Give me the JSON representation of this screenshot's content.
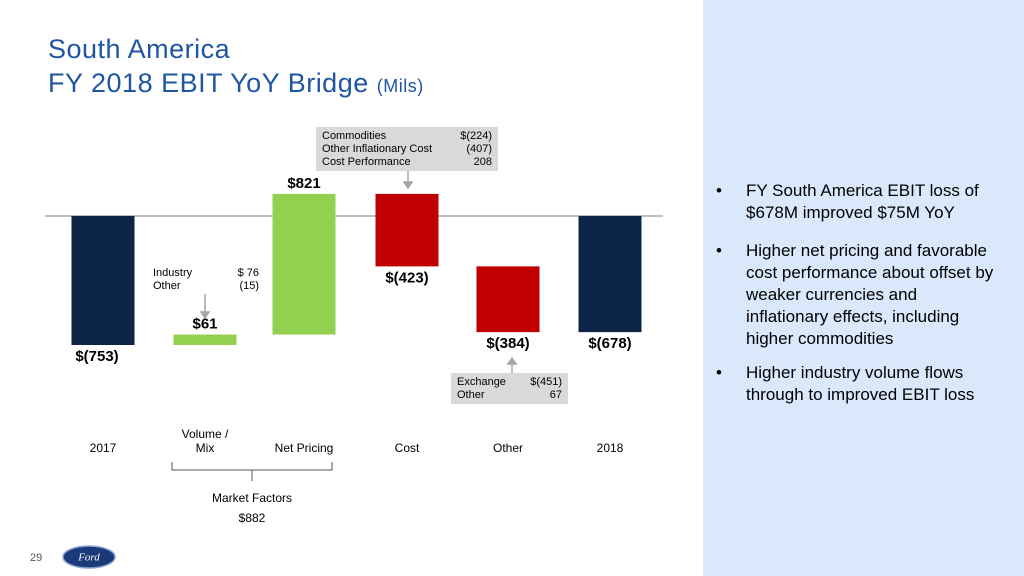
{
  "title": "South America",
  "subtitle": "FY 2018 EBIT YoY Bridge",
  "subtitle_unit": "(Mils)",
  "chart_data": {
    "type": "waterfall",
    "categories": [
      "2017",
      "Volume / Mix",
      "Net Pricing",
      "Cost",
      "Other",
      "2018"
    ],
    "values": [
      -753,
      61,
      821,
      -423,
      -384,
      -678
    ],
    "value_labels": [
      "$(753)",
      "$61",
      "$821",
      "$(423)",
      "$(384)",
      "$(678)"
    ],
    "measure": [
      "total",
      "relative",
      "relative",
      "relative",
      "relative",
      "total"
    ],
    "colors": [
      "#0b2447",
      "#92d050",
      "#92d050",
      "#c00000",
      "#c00000",
      "#0b2447"
    ]
  },
  "annotations": [
    {
      "rows": [
        [
          "Commodities",
          "$(224)"
        ],
        [
          "Other Inflationary Cost",
          "(407)"
        ],
        [
          "Cost Performance",
          "208"
        ]
      ]
    },
    {
      "rows": [
        [
          "Industry",
          "$ 76"
        ],
        [
          "Other",
          "(15)"
        ]
      ]
    },
    {
      "rows": [
        [
          "Exchange",
          "$(451)"
        ],
        [
          "Other",
          "67"
        ]
      ]
    }
  ],
  "market_factors": {
    "label": "Market Factors",
    "value": "$882"
  },
  "bullets": [
    "FY South America EBIT loss of $678M improved $75M YoY",
    "Higher net pricing and favorable cost performance about offset by weaker currencies and inflationary effects, including higher commodities",
    "Higher industry volume flows through to improved EBIT loss"
  ],
  "bullet_symbol": "•",
  "page_number": "29",
  "logo": "Ford"
}
